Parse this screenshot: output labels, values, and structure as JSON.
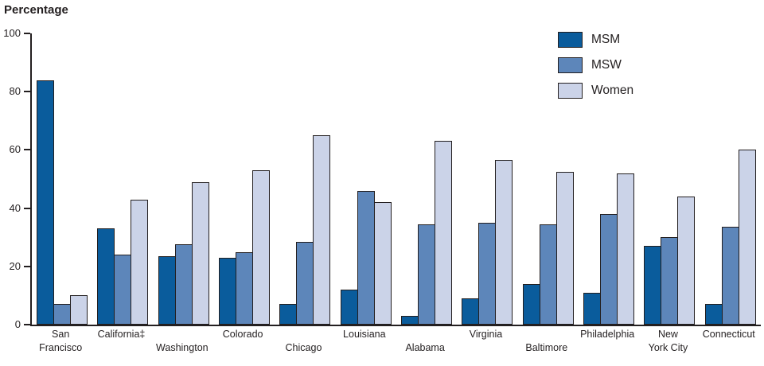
{
  "title": "Percentage",
  "colors": {
    "msm": "#0a5c9c",
    "msw": "#5d86ba",
    "women": "#cbd3e8",
    "outline": "#231f20",
    "axis": "#231f20"
  },
  "legend": {
    "position": "top-right",
    "items": [
      "MSM",
      "MSW",
      "Women"
    ]
  },
  "chart_data": {
    "type": "bar",
    "title": "Percentage",
    "ylabel": "Percentage",
    "xlabel": "",
    "ylim": [
      0,
      100
    ],
    "yticks": [
      0,
      20,
      40,
      60,
      80,
      100
    ],
    "grid": false,
    "legend_position": "top-right",
    "categories": [
      "San Francisco",
      "California‡",
      "Washington",
      "Colorado",
      "Chicago",
      "Louisiana",
      "Alabama",
      "Virginia",
      "Baltimore",
      "Philadelphia",
      "New York City",
      "Connecticut"
    ],
    "category_label_lines": [
      [
        "San",
        "Francisco"
      ],
      [
        "California‡"
      ],
      [
        "Washington"
      ],
      [
        "Colorado"
      ],
      [
        "Chicago"
      ],
      [
        "Louisiana"
      ],
      [
        "Alabama"
      ],
      [
        "Virginia"
      ],
      [
        "Baltimore"
      ],
      [
        "Philadelphia"
      ],
      [
        "New",
        "York City"
      ],
      [
        "Connecticut"
      ]
    ],
    "category_label_row": [
      0,
      0,
      1,
      0,
      1,
      0,
      1,
      0,
      1,
      0,
      0,
      0
    ],
    "series": [
      {
        "name": "MSM",
        "color": "#0a5c9c",
        "values": [
          84,
          33,
          23.5,
          23,
          7,
          12,
          3,
          9,
          14,
          11,
          27,
          7
        ]
      },
      {
        "name": "MSW",
        "color": "#5d86ba",
        "values": [
          7,
          24,
          27.5,
          25,
          28.5,
          46,
          34.5,
          35,
          34.5,
          38,
          30,
          33.5
        ]
      },
      {
        "name": "Women",
        "color": "#cbd3e8",
        "values": [
          10,
          43,
          49,
          53,
          65,
          42,
          63,
          56.5,
          52.5,
          52,
          44,
          60
        ]
      }
    ]
  }
}
